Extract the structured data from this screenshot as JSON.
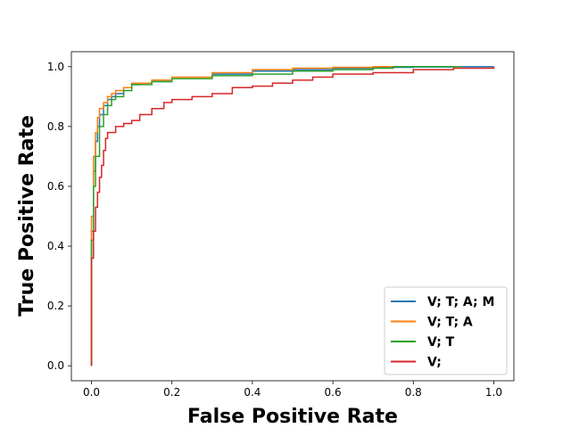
{
  "chart_data": {
    "type": "line",
    "title": "",
    "xlabel": "False Positive Rate",
    "ylabel": "True Positive Rate",
    "xlim": [
      -0.05,
      1.05
    ],
    "ylim": [
      -0.05,
      1.05
    ],
    "xticks": [
      0.0,
      0.2,
      0.4,
      0.6,
      0.8,
      1.0
    ],
    "yticks": [
      0.0,
      0.2,
      0.4,
      0.6,
      0.8,
      1.0
    ],
    "xtick_labels": [
      "0.0",
      "0.2",
      "0.4",
      "0.6",
      "0.8",
      "1.0"
    ],
    "ytick_labels": [
      "0.0",
      "0.2",
      "0.4",
      "0.6",
      "0.8",
      "1.0"
    ],
    "grid": false,
    "legend_position": "lower-right",
    "series": [
      {
        "name": "V; T; A; M",
        "color": "#1f77b4",
        "x": [
          0.0,
          0.0,
          0.005,
          0.01,
          0.015,
          0.02,
          0.03,
          0.04,
          0.05,
          0.06,
          0.08,
          0.1,
          0.12,
          0.15,
          0.2,
          0.3,
          0.4,
          0.5,
          0.6,
          0.7,
          0.8,
          0.9,
          1.0
        ],
        "y": [
          0.0,
          0.45,
          0.65,
          0.75,
          0.8,
          0.84,
          0.87,
          0.89,
          0.9,
          0.91,
          0.93,
          0.94,
          0.945,
          0.95,
          0.96,
          0.975,
          0.985,
          0.99,
          0.995,
          0.998,
          0.999,
          1.0,
          1.0
        ]
      },
      {
        "name": "V; T; A",
        "color": "#ff7f0e",
        "x": [
          0.0,
          0.0,
          0.005,
          0.01,
          0.015,
          0.02,
          0.03,
          0.04,
          0.05,
          0.06,
          0.08,
          0.1,
          0.15,
          0.2,
          0.3,
          0.4,
          0.5,
          0.6,
          0.7,
          0.8,
          0.92
        ],
        "y": [
          0.0,
          0.5,
          0.7,
          0.78,
          0.83,
          0.86,
          0.88,
          0.9,
          0.91,
          0.92,
          0.93,
          0.945,
          0.955,
          0.965,
          0.98,
          0.99,
          0.995,
          0.998,
          1.0,
          1.0,
          1.0
        ]
      },
      {
        "name": "V; T",
        "color": "#2ca02c",
        "x": [
          0.0,
          0.0,
          0.005,
          0.01,
          0.02,
          0.03,
          0.04,
          0.05,
          0.06,
          0.08,
          0.1,
          0.15,
          0.2,
          0.3,
          0.4,
          0.5,
          0.6,
          0.7,
          0.75,
          0.8,
          0.9,
          0.92
        ],
        "y": [
          0.0,
          0.42,
          0.6,
          0.7,
          0.8,
          0.84,
          0.87,
          0.89,
          0.9,
          0.92,
          0.94,
          0.95,
          0.96,
          0.97,
          0.975,
          0.985,
          0.99,
          0.995,
          1.0,
          1.0,
          1.0,
          1.0
        ]
      },
      {
        "name": "V;",
        "color": "#d62728",
        "x": [
          0.0,
          0.0,
          0.005,
          0.01,
          0.015,
          0.02,
          0.025,
          0.03,
          0.035,
          0.04,
          0.06,
          0.08,
          0.1,
          0.12,
          0.15,
          0.18,
          0.2,
          0.25,
          0.3,
          0.35,
          0.4,
          0.45,
          0.5,
          0.55,
          0.6,
          0.7,
          0.8,
          0.9,
          1.0
        ],
        "y": [
          0.0,
          0.36,
          0.45,
          0.53,
          0.58,
          0.63,
          0.67,
          0.72,
          0.76,
          0.78,
          0.8,
          0.81,
          0.82,
          0.84,
          0.86,
          0.88,
          0.89,
          0.9,
          0.91,
          0.93,
          0.935,
          0.945,
          0.955,
          0.965,
          0.975,
          0.98,
          0.99,
          0.995,
          1.0
        ]
      }
    ]
  }
}
